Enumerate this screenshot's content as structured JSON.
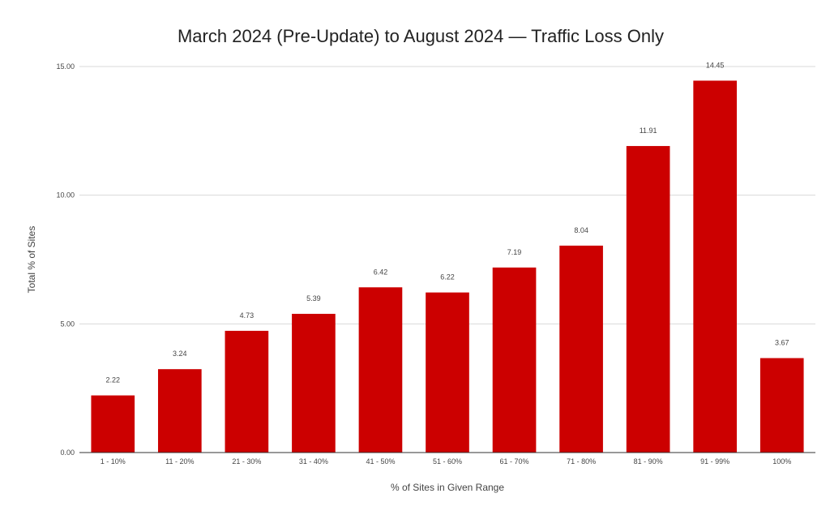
{
  "chart_data": {
    "type": "bar",
    "title": "March 2024 (Pre-Update) to August 2024 — Traffic Loss Only",
    "xlabel": "% of Sites in Given Range",
    "ylabel": "Total % of Sites",
    "categories": [
      "1 - 10%",
      "11 - 20%",
      "21 - 30%",
      "31 - 40%",
      "41 - 50%",
      "51 - 60%",
      "61 - 70%",
      "71 - 80%",
      "81 - 90%",
      "91 - 99%",
      "100%"
    ],
    "values": [
      2.22,
      3.24,
      4.73,
      5.39,
      6.42,
      6.22,
      7.19,
      8.04,
      11.91,
      14.45,
      3.67
    ],
    "value_labels": [
      "2.22",
      "3.24",
      "4.73",
      "5.39",
      "6.42",
      "6.22",
      "7.19",
      "8.04",
      "11.91",
      "14.45",
      "3.67"
    ],
    "ylim": [
      0,
      15
    ],
    "yticks": [
      0,
      5,
      10,
      15
    ],
    "ytick_labels": [
      "0.00",
      "5.00",
      "10.00",
      "15.00"
    ],
    "grid": true,
    "legend": "none",
    "bar_color": "#cc0000"
  }
}
